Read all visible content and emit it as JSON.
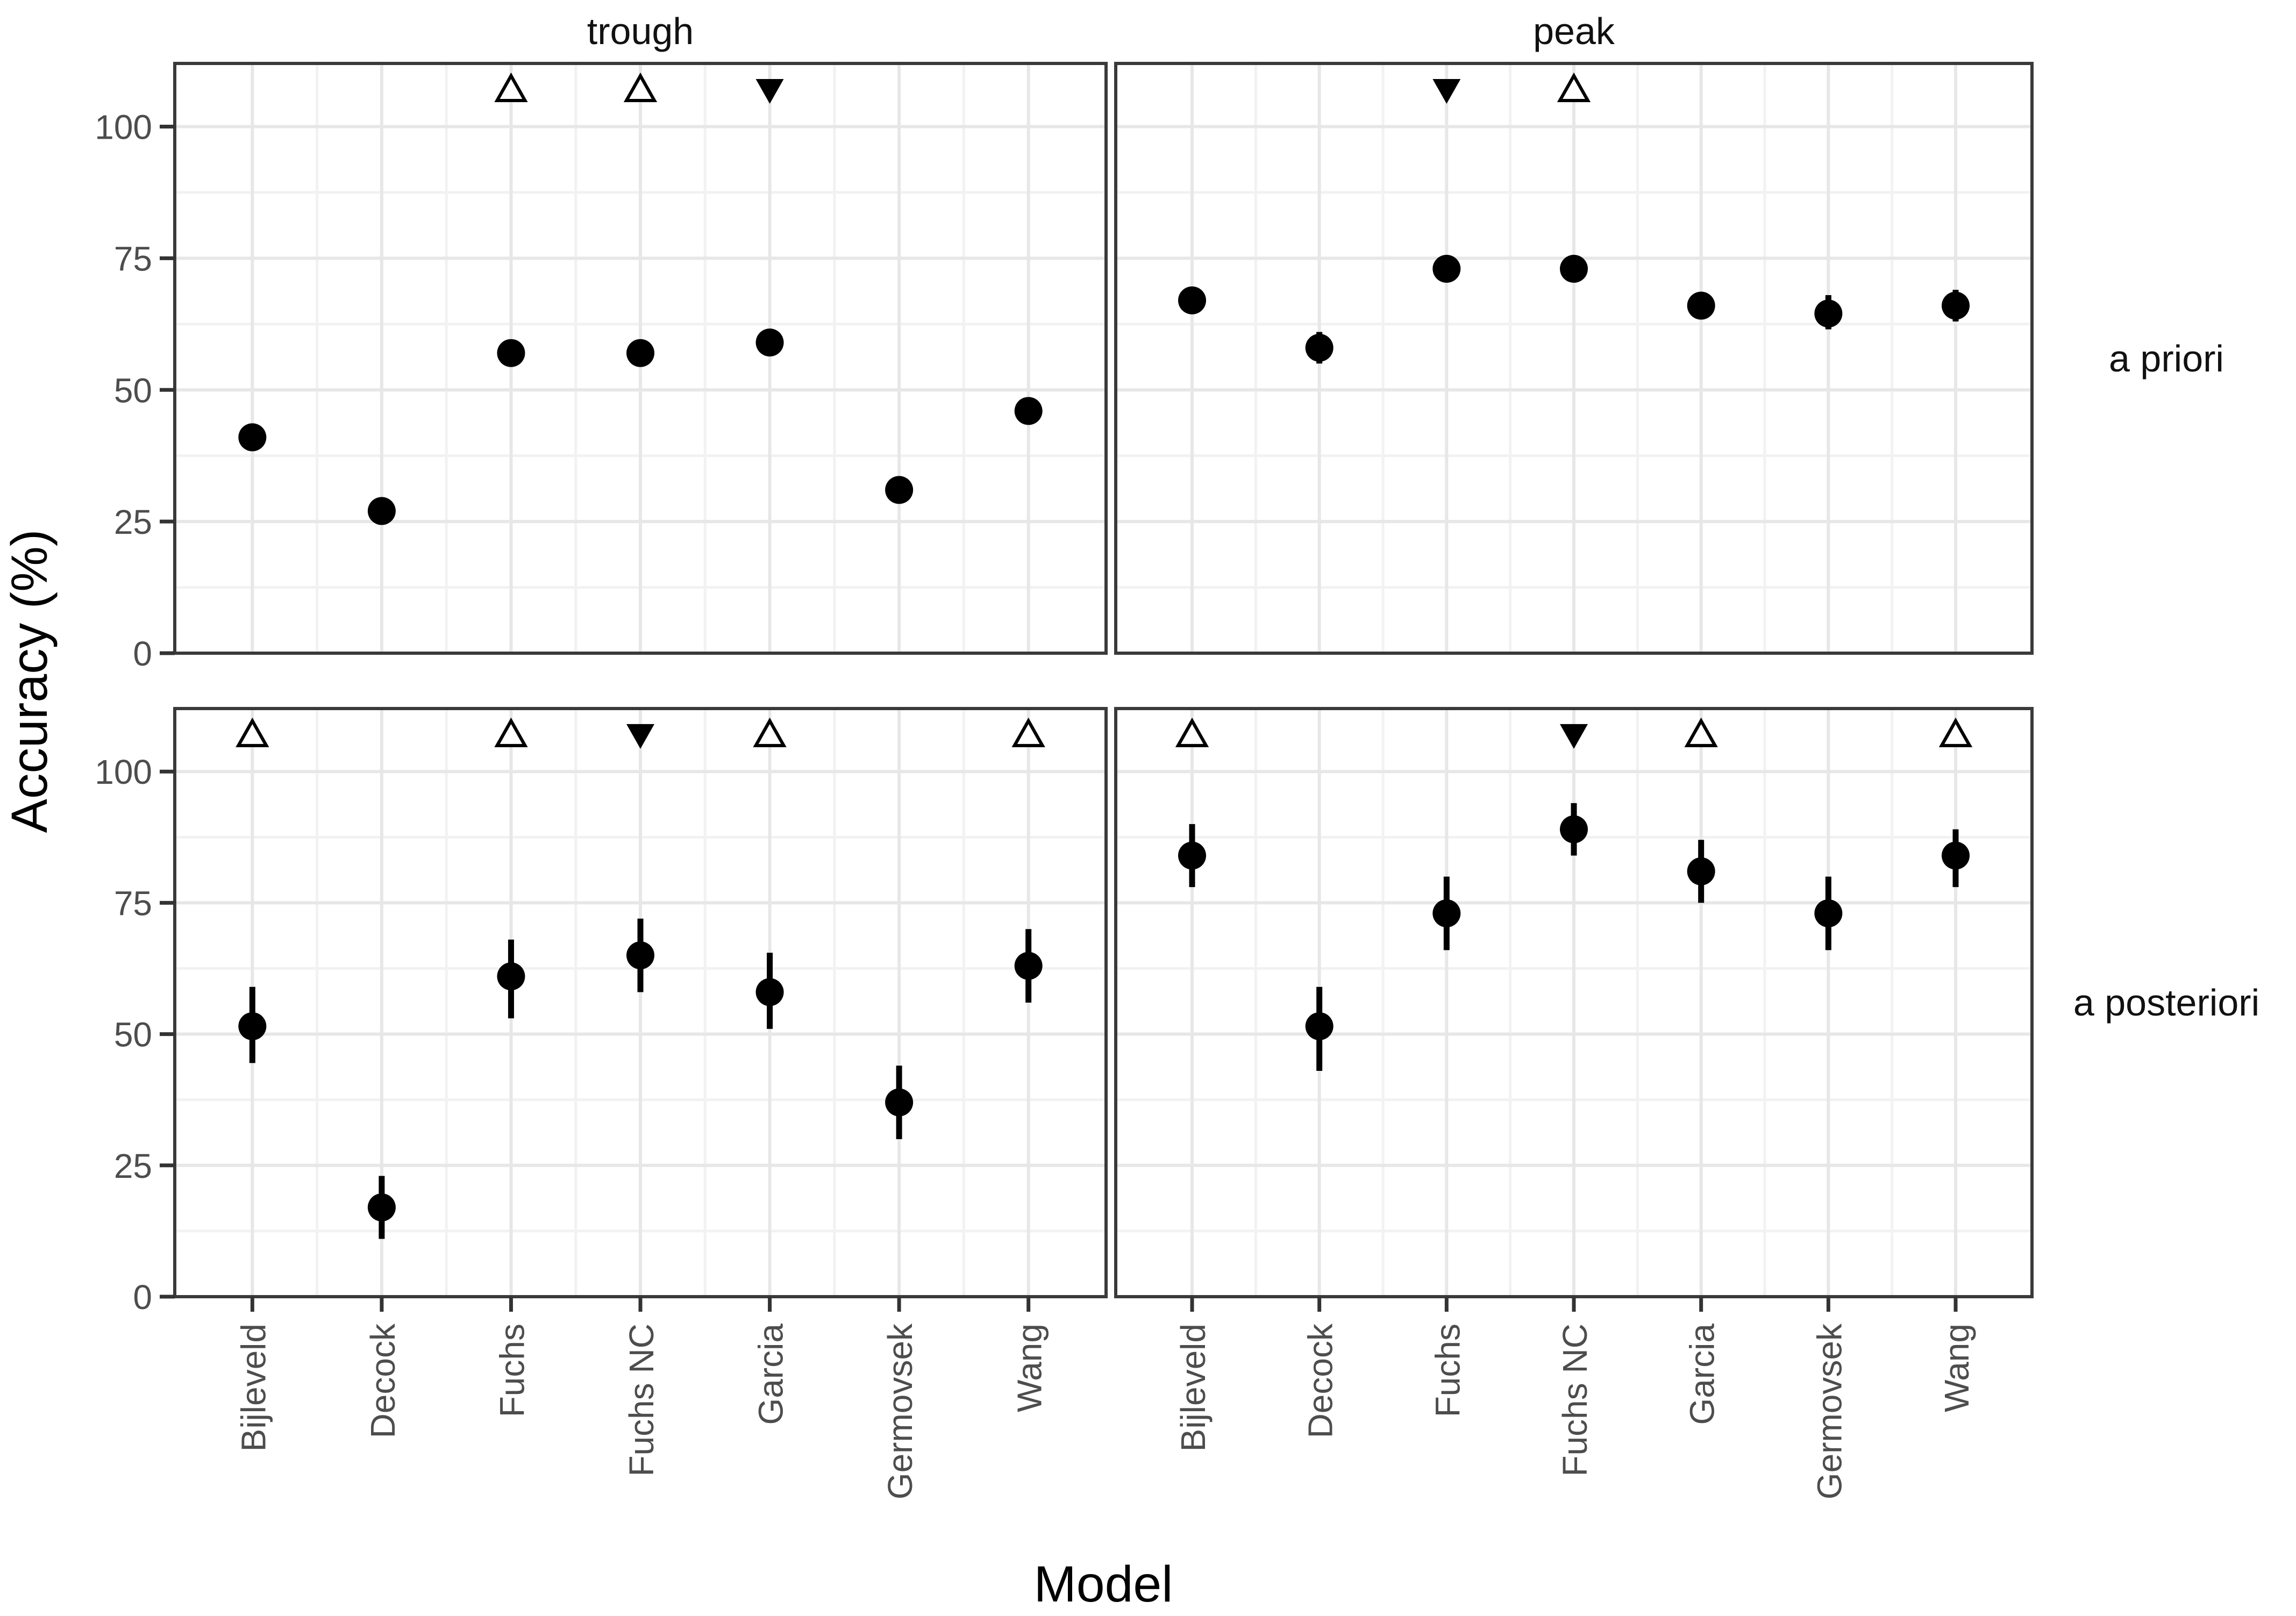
{
  "figure": {
    "x_title": "Model",
    "y_title": "Accuracy (%)",
    "col_facets": [
      "trough",
      "peak"
    ],
    "row_facets": [
      "a priori",
      "a posteriori"
    ]
  },
  "chart_data": {
    "type": "scatter",
    "subtype": "pointrange-facet-grid",
    "xlabel": "Model",
    "ylabel": "Accuracy (%)",
    "categories": [
      "Bijleveld",
      "Decock",
      "Fuchs",
      "Fuchs NC",
      "Garcia",
      "Germovsek",
      "Wang"
    ],
    "y_ticks": [
      "0",
      "25",
      "50",
      "75",
      "100"
    ],
    "y_tick_values": [
      0,
      25,
      50,
      75,
      100
    ],
    "y_minor_values": [
      12.5,
      37.5,
      62.5,
      87.5
    ],
    "ylim": [
      0,
      112
    ],
    "grid": true,
    "legend": "none",
    "marker_row_value": 107,
    "facets": [
      {
        "col": "trough",
        "row": "a priori",
        "series": [
          {
            "model": "Bijleveld",
            "value": 41,
            "lo": 40,
            "hi": 43,
            "marker": null
          },
          {
            "model": "Decock",
            "value": 27,
            "lo": 26,
            "hi": 28,
            "marker": null
          },
          {
            "model": "Fuchs",
            "value": 57,
            "lo": 56,
            "hi": 58,
            "marker": "open-up"
          },
          {
            "model": "Fuchs NC",
            "value": 57,
            "lo": 56,
            "hi": 58,
            "marker": "open-up"
          },
          {
            "model": "Garcia",
            "value": 59,
            "lo": 58,
            "hi": 60,
            "marker": "filled-down"
          },
          {
            "model": "Germovsek",
            "value": 31,
            "lo": 30,
            "hi": 32,
            "marker": null
          },
          {
            "model": "Wang",
            "value": 46,
            "lo": 45,
            "hi": 47,
            "marker": null
          }
        ]
      },
      {
        "col": "peak",
        "row": "a priori",
        "series": [
          {
            "model": "Bijleveld",
            "value": 67,
            "lo": 64.5,
            "hi": 69.5,
            "marker": null
          },
          {
            "model": "Decock",
            "value": 58,
            "lo": 55,
            "hi": 61,
            "marker": null
          },
          {
            "model": "Fuchs",
            "value": 73,
            "lo": 70.5,
            "hi": 75.5,
            "marker": "filled-down"
          },
          {
            "model": "Fuchs NC",
            "value": 73,
            "lo": 70.5,
            "hi": 75.5,
            "marker": "open-up"
          },
          {
            "model": "Garcia",
            "value": 66,
            "lo": 63.5,
            "hi": 68.5,
            "marker": null
          },
          {
            "model": "Germovsek",
            "value": 64.5,
            "lo": 61.5,
            "hi": 68,
            "marker": null
          },
          {
            "model": "Wang",
            "value": 66,
            "lo": 63,
            "hi": 69,
            "marker": null
          }
        ]
      },
      {
        "col": "trough",
        "row": "a posteriori",
        "series": [
          {
            "model": "Bijleveld",
            "value": 51.5,
            "lo": 44.5,
            "hi": 59,
            "marker": "open-up"
          },
          {
            "model": "Decock",
            "value": 17,
            "lo": 11,
            "hi": 23,
            "marker": null
          },
          {
            "model": "Fuchs",
            "value": 61,
            "lo": 53,
            "hi": 68,
            "marker": "open-up"
          },
          {
            "model": "Fuchs NC",
            "value": 65,
            "lo": 58,
            "hi": 72,
            "marker": "filled-down"
          },
          {
            "model": "Garcia",
            "value": 58,
            "lo": 51,
            "hi": 65.5,
            "marker": "open-up"
          },
          {
            "model": "Germovsek",
            "value": 37,
            "lo": 30,
            "hi": 44,
            "marker": null
          },
          {
            "model": "Wang",
            "value": 63,
            "lo": 56,
            "hi": 70,
            "marker": "open-up"
          }
        ]
      },
      {
        "col": "peak",
        "row": "a posteriori",
        "series": [
          {
            "model": "Bijleveld",
            "value": 84,
            "lo": 78,
            "hi": 90,
            "marker": "open-up"
          },
          {
            "model": "Decock",
            "value": 51.5,
            "lo": 43,
            "hi": 59,
            "marker": null
          },
          {
            "model": "Fuchs",
            "value": 73,
            "lo": 66,
            "hi": 80,
            "marker": null
          },
          {
            "model": "Fuchs NC",
            "value": 89,
            "lo": 84,
            "hi": 94,
            "marker": "filled-down"
          },
          {
            "model": "Garcia",
            "value": 81,
            "lo": 75,
            "hi": 87,
            "marker": "open-up"
          },
          {
            "model": "Germovsek",
            "value": 73,
            "lo": 66,
            "hi": 80,
            "marker": null
          },
          {
            "model": "Wang",
            "value": 84,
            "lo": 78,
            "hi": 89,
            "marker": "open-up"
          }
        ]
      }
    ],
    "colors": {
      "background": "#ffffff",
      "panel_border": "#3a3a3a",
      "grid_major": "#e7e7e7",
      "grid_minor": "#f2f2f2",
      "tick_mark": "#333333",
      "tick_label": "#4d4d4d",
      "data": "#000000"
    }
  }
}
